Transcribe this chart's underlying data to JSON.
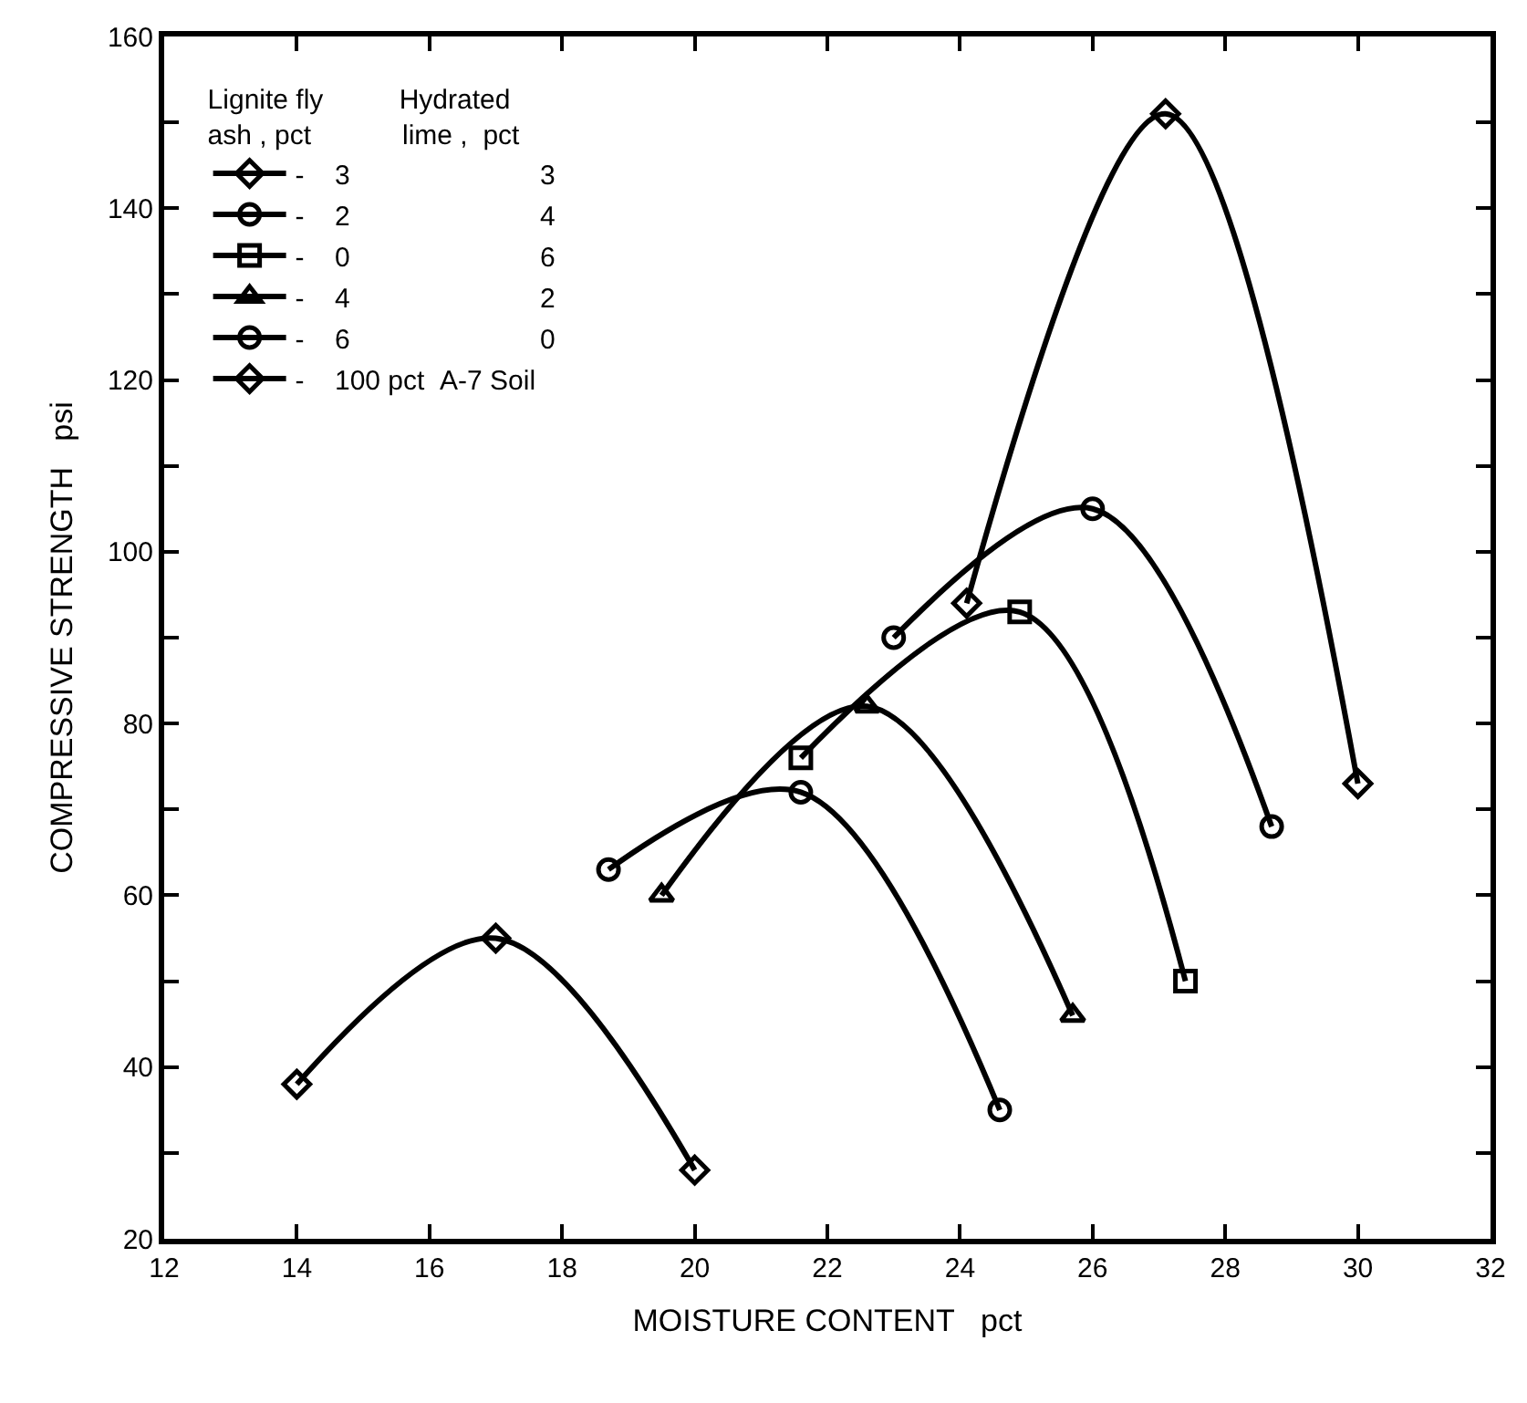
{
  "chart_data": {
    "type": "line",
    "xlabel": "MOISTURE CONTENT   pct",
    "ylabel": "COMPRESSIVE STRENGTH   psi",
    "legend_title": "Lignite fly          Hydrated\nash , pct            lime ,  pct",
    "legend": "top left",
    "line_style": "solid",
    "xlim": [
      12,
      32
    ],
    "xticks": [
      12,
      14,
      16,
      18,
      20,
      22,
      24,
      26,
      28,
      30,
      32
    ],
    "ylim": [
      20,
      160
    ],
    "yticks": [
      20,
      {
        "value": 30,
        "label": null
      },
      40,
      {
        "value": 50,
        "label": null
      },
      60,
      {
        "value": 70,
        "label": null
      },
      80,
      {
        "value": 90,
        "label": null
      },
      100,
      {
        "value": 110,
        "label": null
      },
      120,
      {
        "value": 130,
        "label": null
      },
      140,
      {
        "value": 150,
        "label": null
      },
      160
    ],
    "series": [
      {
        "name": "-    3                         3",
        "color": "#000000",
        "marker": "diamond",
        "x": [
          24.1,
          27.1,
          30.0
        ],
        "values": [
          94,
          151,
          73
        ]
      },
      {
        "name": "-    2                         4",
        "color": "#000000",
        "marker": "circle",
        "x": [
          23.0,
          26.0,
          28.7
        ],
        "values": [
          90,
          105,
          68
        ]
      },
      {
        "name": "-    0                         6",
        "color": "#000000",
        "marker": "square",
        "x": [
          21.6,
          24.9,
          27.4
        ],
        "values": [
          76,
          93,
          50
        ]
      },
      {
        "name": "-    4                         2",
        "color": "#000000",
        "marker": "triangle",
        "x": [
          19.5,
          22.6,
          25.7
        ],
        "values": [
          60,
          82,
          46
        ]
      },
      {
        "name": "-    6                         0",
        "color": "#000000",
        "marker": "circle",
        "x": [
          18.7,
          21.6,
          24.6
        ],
        "values": [
          63,
          72,
          35
        ]
      },
      {
        "name": "-    100 pct  A-7 Soil",
        "color": "#000000",
        "marker": "diamond",
        "x": [
          14.0,
          17.0,
          20.0
        ],
        "values": [
          38,
          55,
          28
        ]
      }
    ]
  }
}
